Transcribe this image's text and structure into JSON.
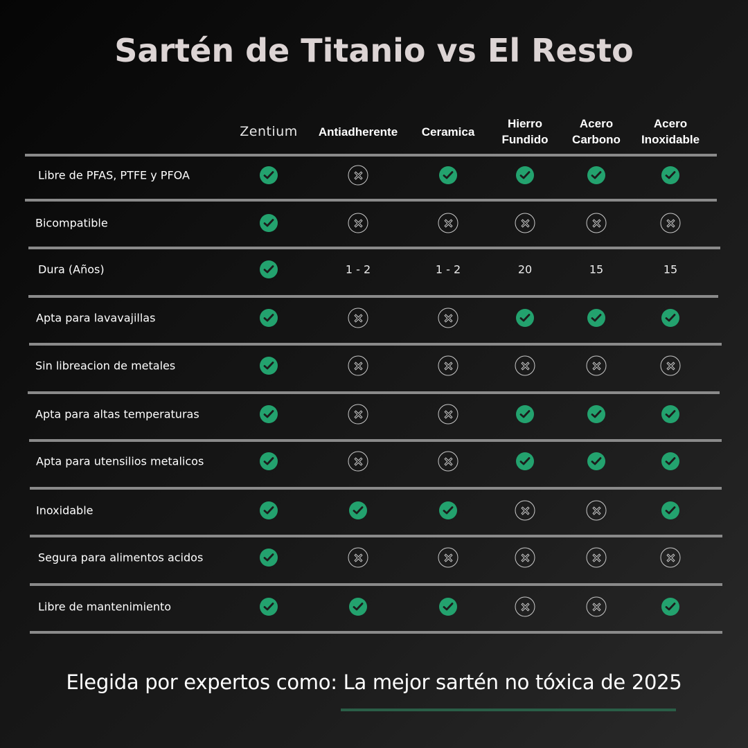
{
  "title": "Sartén de Titanio vs El Resto",
  "colors": {
    "check": "#23a26e",
    "cross_outline": "#c8c8c8",
    "divider": "#8a8a8a",
    "underline": "#2a5e47",
    "title": "#dcd4d4"
  },
  "columns": [
    {
      "label": "Zentium",
      "brand": true
    },
    {
      "label": "Antiadherente"
    },
    {
      "label": "Ceramica"
    },
    {
      "label": "Hierro\nFundido"
    },
    {
      "label": "Acero\nCarbono"
    },
    {
      "label": "Acero\nInoxidable"
    }
  ],
  "rows": [
    {
      "label": "Libre de PFAS, PTFE y PFOA",
      "values": [
        "check",
        "cross",
        "check",
        "check",
        "check",
        "check"
      ]
    },
    {
      "label": "Bicompatible",
      "values": [
        "check",
        "cross",
        "cross",
        "cross",
        "cross",
        "cross"
      ]
    },
    {
      "label": "Dura (Años)",
      "values": [
        "check",
        "1 - 2",
        "1 - 2",
        "20",
        "15",
        "15"
      ]
    },
    {
      "label": "Apta para lavavajillas",
      "values": [
        "check",
        "cross",
        "cross",
        "check",
        "check",
        "check"
      ]
    },
    {
      "label": "Sin libreacion de metales",
      "values": [
        "check",
        "cross",
        "cross",
        "cross",
        "cross",
        "cross"
      ]
    },
    {
      "label": "Apta para altas temperaturas",
      "values": [
        "check",
        "cross",
        "cross",
        "check",
        "check",
        "check"
      ]
    },
    {
      "label": "Apta para utensilios metalicos",
      "values": [
        "check",
        "cross",
        "cross",
        "check",
        "check",
        "check"
      ]
    },
    {
      "label": "Inoxidable",
      "values": [
        "check",
        "check",
        "check",
        "cross",
        "cross",
        "check"
      ]
    },
    {
      "label": "Segura para alimentos acidos",
      "values": [
        "check",
        "cross",
        "cross",
        "cross",
        "cross",
        "cross"
      ]
    },
    {
      "label": "Libre de mantenimiento",
      "values": [
        "check",
        "check",
        "check",
        "cross",
        "cross",
        "check"
      ]
    }
  ],
  "footer": {
    "text": "Elegida por expertos como: La mejor sartén no tóxica de 2025"
  },
  "icons": {
    "check": "check-circle-icon",
    "cross": "x-circle-icon"
  }
}
